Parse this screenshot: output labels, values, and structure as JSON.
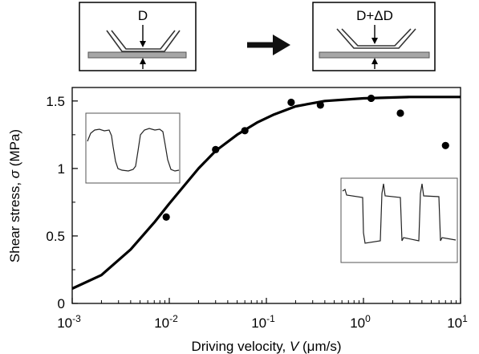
{
  "schematics": {
    "before_label": "D",
    "after_label": "D+ΔD"
  },
  "chart_data": {
    "type": "scatter",
    "title": "",
    "xlabel_prefix": "Driving velocity, ",
    "xlabel_var": "V",
    "xlabel_suffix": " (μm/s)",
    "ylabel_prefix": "Shear stress, ",
    "ylabel_var": "σ",
    "ylabel_suffix": " (MPa)",
    "x_scale": "log",
    "xlim": [
      0.001,
      10
    ],
    "ylim": [
      0,
      1.6
    ],
    "grid": false,
    "x_ticks": [
      {
        "value": 0.001,
        "base": "10",
        "exp": "-3"
      },
      {
        "value": 0.01,
        "base": "10",
        "exp": "-2"
      },
      {
        "value": 0.1,
        "base": "10",
        "exp": "-1"
      },
      {
        "value": 1,
        "base": "10",
        "exp": "0"
      },
      {
        "value": 10,
        "base": "10",
        "exp": "1"
      }
    ],
    "y_ticks": [
      {
        "value": 0,
        "label": "0"
      },
      {
        "value": 0.5,
        "label": "0.5"
      },
      {
        "value": 1,
        "label": "1"
      },
      {
        "value": 1.5,
        "label": "1.5"
      }
    ],
    "series": [
      {
        "style": "points",
        "color": "#000000",
        "points": [
          {
            "x": 0.0093,
            "y": 0.64
          },
          {
            "x": 0.03,
            "y": 1.14
          },
          {
            "x": 0.06,
            "y": 1.28
          },
          {
            "x": 0.18,
            "y": 1.49
          },
          {
            "x": 0.36,
            "y": 1.47
          },
          {
            "x": 1.2,
            "y": 1.52
          },
          {
            "x": 2.4,
            "y": 1.41
          },
          {
            "x": 7.0,
            "y": 1.17
          }
        ]
      },
      {
        "style": "line",
        "color": "#000000",
        "points": [
          {
            "x": 0.001,
            "y": 0.11
          },
          {
            "x": 0.002,
            "y": 0.21
          },
          {
            "x": 0.004,
            "y": 0.4
          },
          {
            "x": 0.007,
            "y": 0.6
          },
          {
            "x": 0.01,
            "y": 0.74
          },
          {
            "x": 0.02,
            "y": 1.0
          },
          {
            "x": 0.03,
            "y": 1.13
          },
          {
            "x": 0.05,
            "y": 1.25
          },
          {
            "x": 0.08,
            "y": 1.34
          },
          {
            "x": 0.12,
            "y": 1.4
          },
          {
            "x": 0.2,
            "y": 1.46
          },
          {
            "x": 0.4,
            "y": 1.5
          },
          {
            "x": 1,
            "y": 1.52
          },
          {
            "x": 3,
            "y": 1.53
          },
          {
            "x": 10,
            "y": 1.53
          }
        ]
      }
    ]
  }
}
